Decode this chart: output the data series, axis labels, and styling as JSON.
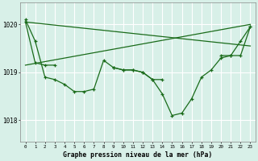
{
  "background_color": "#d8f0e8",
  "grid_color": "#ffffff",
  "line_color": "#1a6b1a",
  "marker_color": "#1a6b1a",
  "title": "Graphe pression niveau de la mer (hPa)",
  "ylabel_ticks": [
    1018,
    1019,
    1020
  ],
  "xlim": [
    -0.5,
    23.5
  ],
  "ylim": [
    1017.55,
    1020.45
  ],
  "series": [
    {
      "x": [
        0,
        1,
        2,
        3,
        4,
        5,
        6,
        7,
        8,
        9,
        10,
        11,
        12,
        13,
        14,
        15,
        16,
        17,
        18,
        19,
        20,
        21,
        22,
        23
      ],
      "y": [
        1020.1,
        1019.65,
        1018.9,
        1018.85,
        1018.75,
        1018.6,
        1018.6,
        1018.65,
        1019.25,
        1019.1,
        1019.05,
        1019.05,
        1019.0,
        1018.85,
        1018.55,
        1018.1,
        1018.15,
        1018.45,
        1018.9,
        1019.05,
        1019.3,
        1019.35,
        1019.35,
        1019.95
      ],
      "marker": true
    },
    {
      "x": [
        0,
        23
      ],
      "y": [
        1020.05,
        1019.55
      ],
      "marker": false
    },
    {
      "x": [
        0,
        23
      ],
      "y": [
        1019.15,
        1020.0
      ],
      "marker": false
    },
    {
      "x": [
        0,
        1,
        2,
        3
      ],
      "y": [
        1020.05,
        1019.2,
        1019.15,
        1019.15
      ],
      "marker": true
    },
    {
      "x": [
        20,
        21,
        22,
        23
      ],
      "y": [
        1019.35,
        1019.35,
        1019.65,
        1019.95
      ],
      "marker": true
    },
    {
      "x": [
        9,
        10,
        11,
        12,
        13,
        14
      ],
      "y": [
        1019.1,
        1019.05,
        1019.05,
        1019.0,
        1018.85,
        1018.85
      ],
      "marker": true
    }
  ]
}
